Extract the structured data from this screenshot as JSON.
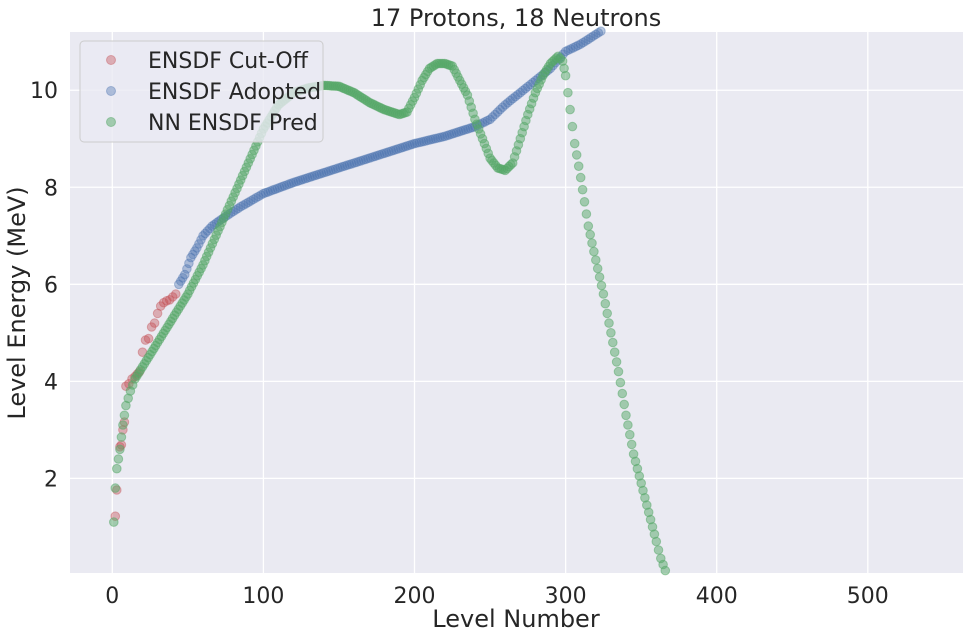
{
  "chart_data": {
    "type": "scatter",
    "title": "17 Protons, 18 Neutrons",
    "xlabel": "Level Number",
    "ylabel": "Level Energy (MeV)",
    "xlim": [
      -28,
      563
    ],
    "ylim": [
      0.05,
      11.2
    ],
    "xticks": [
      0,
      100,
      200,
      300,
      400,
      500
    ],
    "yticks": [
      2,
      4,
      6,
      8,
      10
    ],
    "grid": true,
    "legend_position": "top-left",
    "series": [
      {
        "name": "ENSDF Cut-Off",
        "color": "#c44e52",
        "points": [
          [
            0,
            0.0
          ],
          [
            2,
            1.22
          ],
          [
            3,
            1.76
          ],
          [
            5,
            2.65
          ],
          [
            6,
            2.69
          ],
          [
            7,
            3.0
          ],
          [
            8,
            3.16
          ],
          [
            9,
            3.9
          ],
          [
            11,
            3.95
          ],
          [
            13,
            4.05
          ],
          [
            15,
            4.1
          ],
          [
            18,
            4.2
          ],
          [
            20,
            4.6
          ],
          [
            22,
            4.85
          ],
          [
            24,
            4.88
          ],
          [
            26,
            5.12
          ],
          [
            28,
            5.2
          ],
          [
            30,
            5.4
          ],
          [
            32,
            5.55
          ],
          [
            34,
            5.62
          ],
          [
            36,
            5.66
          ],
          [
            38,
            5.68
          ],
          [
            40,
            5.74
          ],
          [
            42,
            5.8
          ]
        ]
      },
      {
        "name": "ENSDF Adopted",
        "color": "#4c72b0",
        "points": [
          [
            44,
            6.0
          ],
          [
            48,
            6.2
          ],
          [
            52,
            6.55
          ],
          [
            56,
            6.75
          ],
          [
            60,
            7.0
          ],
          [
            66,
            7.2
          ],
          [
            75,
            7.4
          ],
          [
            85,
            7.6
          ],
          [
            100,
            7.87
          ],
          [
            120,
            8.1
          ],
          [
            140,
            8.3
          ],
          [
            160,
            8.5
          ],
          [
            180,
            8.7
          ],
          [
            200,
            8.9
          ],
          [
            220,
            9.05
          ],
          [
            240,
            9.25
          ],
          [
            250,
            9.4
          ],
          [
            260,
            9.7
          ],
          [
            270,
            9.95
          ],
          [
            280,
            10.2
          ],
          [
            290,
            10.45
          ],
          [
            300,
            10.8
          ],
          [
            310,
            10.95
          ],
          [
            320,
            11.15
          ],
          [
            325,
            11.25
          ]
        ]
      },
      {
        "name": "NN ENSDF Pred",
        "color": "#55a868",
        "points": [
          [
            1,
            1.1
          ],
          [
            2,
            1.8
          ],
          [
            3,
            2.2
          ],
          [
            5,
            2.6
          ],
          [
            7,
            3.1
          ],
          [
            9,
            3.5
          ],
          [
            12,
            3.8
          ],
          [
            15,
            4.05
          ],
          [
            20,
            4.3
          ],
          [
            30,
            4.8
          ],
          [
            40,
            5.3
          ],
          [
            50,
            5.8
          ],
          [
            60,
            6.4
          ],
          [
            70,
            7.1
          ],
          [
            80,
            7.8
          ],
          [
            90,
            8.5
          ],
          [
            100,
            9.2
          ],
          [
            110,
            9.7
          ],
          [
            120,
            9.95
          ],
          [
            130,
            10.05
          ],
          [
            140,
            10.1
          ],
          [
            150,
            10.08
          ],
          [
            160,
            9.95
          ],
          [
            170,
            9.75
          ],
          [
            180,
            9.6
          ],
          [
            190,
            9.5
          ],
          [
            195,
            9.55
          ],
          [
            200,
            9.85
          ],
          [
            205,
            10.2
          ],
          [
            210,
            10.45
          ],
          [
            215,
            10.55
          ],
          [
            220,
            10.55
          ],
          [
            225,
            10.5
          ],
          [
            230,
            10.2
          ],
          [
            235,
            9.9
          ],
          [
            240,
            9.4
          ],
          [
            245,
            9.0
          ],
          [
            250,
            8.6
          ],
          [
            255,
            8.4
          ],
          [
            260,
            8.35
          ],
          [
            265,
            8.5
          ],
          [
            270,
            9.0
          ],
          [
            275,
            9.5
          ],
          [
            280,
            9.95
          ],
          [
            285,
            10.3
          ],
          [
            290,
            10.55
          ],
          [
            295,
            10.7
          ],
          [
            298,
            10.6
          ],
          [
            300,
            10.3
          ],
          [
            303,
            9.6
          ],
          [
            306,
            8.9
          ],
          [
            310,
            8.2
          ],
          [
            315,
            7.2
          ],
          [
            320,
            6.5
          ],
          [
            325,
            5.8
          ],
          [
            330,
            5.0
          ],
          [
            335,
            4.2
          ],
          [
            340,
            3.3
          ],
          [
            345,
            2.5
          ],
          [
            350,
            1.9
          ],
          [
            355,
            1.3
          ],
          [
            360,
            0.7
          ],
          [
            363,
            0.35
          ],
          [
            366,
            0.1
          ]
        ]
      }
    ]
  }
}
